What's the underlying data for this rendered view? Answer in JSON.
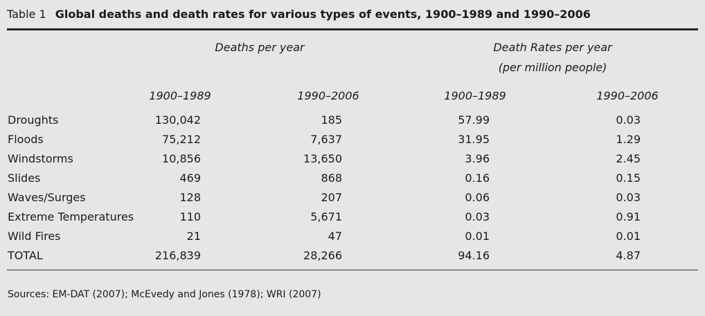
{
  "caption": {
    "label": "Table 1",
    "title": "Global deaths and death rates for various types of events, 1900–1989 and 1990–2006"
  },
  "headers": {
    "group1": "Deaths per year",
    "group2_line1": "Death Rates per year",
    "group2_line2": "(per million people)",
    "cols": [
      "1900–1989",
      "1990–2006",
      "1900–1989",
      "1990–2006"
    ]
  },
  "rows": [
    {
      "label": "Droughts",
      "values": [
        "130,042",
        "185",
        "57.99",
        "0.03"
      ]
    },
    {
      "label": "Floods",
      "values": [
        "75,212",
        "7,637",
        "31.95",
        "1.29"
      ]
    },
    {
      "label": "Windstorms",
      "values": [
        "10,856",
        "13,650",
        "3.96",
        "2.45"
      ]
    },
    {
      "label": "Slides",
      "values": [
        "469",
        "868",
        "0.16",
        "0.15"
      ]
    },
    {
      "label": "Waves/Surges",
      "values": [
        "128",
        "207",
        "0.06",
        "0.03"
      ]
    },
    {
      "label": "Extreme Temperatures",
      "values": [
        "110",
        "5,671",
        "0.03",
        "0.91"
      ]
    },
    {
      "label": "Wild Fires",
      "values": [
        "21",
        "47",
        "0.01",
        "0.01"
      ]
    },
    {
      "label": "TOTAL",
      "values": [
        "216,839",
        "28,266",
        "94.16",
        "4.87"
      ]
    }
  ],
  "source": "Sources: EM-DAT (2007); McEvedy and Jones (1978); WRI (2007)"
}
